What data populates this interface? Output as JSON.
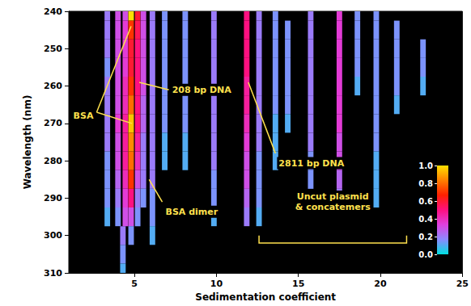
{
  "chart_data": {
    "type": "heatmap",
    "xlabel": "Sedimentation coefficient",
    "ylabel": "Wavelength (nm)",
    "xlim": [
      1,
      25
    ],
    "xticks": [
      5,
      10,
      15,
      20,
      25
    ],
    "ylim": [
      240,
      310
    ],
    "yticks": [
      240,
      250,
      260,
      270,
      280,
      290,
      300,
      310
    ],
    "grid": false,
    "wavelengths": [
      240,
      245,
      250,
      255,
      260,
      265,
      270,
      275,
      280,
      285,
      290,
      295,
      300,
      305,
      310
    ],
    "streaks": [
      {
        "s": 3.35,
        "values": [
          0.2,
          0.2,
          0.2,
          0.15,
          0.2,
          0.2,
          0.2,
          0.2,
          0.15,
          0.15,
          0.15,
          0.1,
          null,
          null,
          null
        ]
      },
      {
        "s": 4.0,
        "values": [
          0.3,
          0.3,
          0.3,
          0.3,
          0.3,
          0.3,
          0.35,
          0.3,
          0.3,
          0.25,
          0.2,
          0.15,
          null,
          null,
          null
        ]
      },
      {
        "s": 4.45,
        "values": [
          0.3,
          0.35,
          0.35,
          0.35,
          0.4,
          0.4,
          0.45,
          0.45,
          0.45,
          0.4,
          0.35,
          0.3,
          null,
          null,
          null
        ]
      },
      {
        "s": 4.3,
        "values": [
          null,
          null,
          null,
          null,
          null,
          null,
          null,
          null,
          null,
          null,
          null,
          null,
          0.2,
          0.15,
          0.1
        ]
      },
      {
        "s": 4.8,
        "values": [
          1.0,
          0.7,
          0.6,
          0.6,
          0.7,
          0.8,
          0.95,
          0.85,
          0.8,
          0.7,
          0.5,
          0.3,
          0.15,
          null,
          null
        ]
      },
      {
        "s": 5.2,
        "values": [
          0.6,
          0.55,
          0.5,
          0.5,
          0.5,
          0.5,
          0.5,
          0.45,
          0.4,
          0.3,
          0.2,
          0.15,
          null,
          null,
          null
        ]
      },
      {
        "s": 5.55,
        "values": [
          0.3,
          0.3,
          0.3,
          0.3,
          0.3,
          0.25,
          0.25,
          0.2,
          0.2,
          0.2,
          0.15,
          null,
          null,
          null,
          null
        ]
      },
      {
        "s": 6.1,
        "values": [
          0.2,
          0.2,
          0.2,
          0.2,
          0.2,
          0.2,
          0.2,
          0.2,
          0.2,
          0.2,
          0.15,
          0.15,
          0.1,
          null,
          null
        ]
      },
      {
        "s": 6.85,
        "values": [
          0.15,
          0.15,
          0.15,
          0.15,
          0.15,
          0.15,
          0.15,
          0.1,
          0.1,
          null,
          null,
          null,
          null,
          null,
          null
        ]
      },
      {
        "s": 8.1,
        "values": [
          0.15,
          0.15,
          0.15,
          0.15,
          0.15,
          0.15,
          0.15,
          0.1,
          0.1,
          null,
          null,
          null,
          null,
          null,
          null
        ]
      },
      {
        "s": 9.85,
        "values": [
          0.2,
          0.2,
          0.2,
          0.2,
          0.2,
          0.2,
          0.2,
          0.2,
          0.2,
          0.15,
          0.15,
          0.1,
          null,
          null,
          null
        ]
      },
      {
        "s": 11.85,
        "values": [
          0.5,
          0.5,
          0.5,
          0.5,
          0.45,
          0.45,
          0.4,
          0.35,
          0.3,
          0.3,
          0.25,
          0.2,
          null,
          null,
          null
        ]
      },
      {
        "s": 12.6,
        "values": [
          0.2,
          0.2,
          0.2,
          0.2,
          0.2,
          0.2,
          0.2,
          0.2,
          0.15,
          0.15,
          0.15,
          0.1,
          null,
          null,
          null
        ]
      },
      {
        "s": 13.6,
        "values": [
          0.15,
          0.15,
          0.15,
          0.15,
          0.15,
          0.15,
          0.1,
          0.1,
          0.1,
          null,
          null,
          null,
          null,
          null,
          null
        ]
      },
      {
        "s": 14.35,
        "values": [
          null,
          0.15,
          0.15,
          0.15,
          0.15,
          0.15,
          0.1,
          null,
          null,
          null,
          null,
          null,
          null,
          null,
          null
        ]
      },
      {
        "s": 15.75,
        "values": [
          0.2,
          0.2,
          0.2,
          0.2,
          0.2,
          0.2,
          0.2,
          0.2,
          0.15,
          0.15,
          null,
          null,
          null,
          null,
          null
        ]
      },
      {
        "s": 17.5,
        "values": [
          0.35,
          0.35,
          0.35,
          0.35,
          0.35,
          0.35,
          0.35,
          0.3,
          0.3,
          0.25,
          0.2,
          null,
          null,
          null,
          null
        ]
      },
      {
        "s": 18.6,
        "values": [
          0.15,
          0.15,
          0.15,
          0.15,
          0.1,
          null,
          null,
          null,
          null,
          null,
          null,
          null,
          null,
          null,
          null
        ]
      },
      {
        "s": 19.75,
        "values": [
          0.15,
          0.15,
          0.15,
          0.15,
          0.15,
          0.15,
          0.15,
          0.15,
          0.1,
          0.1,
          0.1,
          null,
          null,
          null,
          null
        ]
      },
      {
        "s": 21.0,
        "values": [
          null,
          0.15,
          0.15,
          0.15,
          0.15,
          0.1,
          null,
          null,
          null,
          null,
          null,
          null,
          null,
          null,
          null
        ]
      },
      {
        "s": 22.6,
        "values": [
          null,
          null,
          0.15,
          0.15,
          0.1,
          null,
          null,
          null,
          null,
          null,
          null,
          null,
          null,
          null,
          null
        ]
      }
    ],
    "colorbar": {
      "range": [
        0,
        1
      ],
      "ticks": [
        {
          "value": 0,
          "label": "0.0"
        },
        0.2,
        0.4,
        0.6,
        0.8,
        {
          "value": 1,
          "label": "1.0"
        }
      ]
    },
    "annotations": [
      {
        "text": "BSA",
        "points": [
          [
            4.8,
            244
          ],
          [
            4.85,
            270
          ]
        ]
      },
      {
        "text": "208 bp DNA",
        "points": [
          [
            5.3,
            259
          ]
        ]
      },
      {
        "text": "2811 bp DNA",
        "points": [
          [
            11.95,
            259
          ]
        ]
      },
      {
        "text": "BSA dimer",
        "points": [
          [
            5.9,
            285
          ]
        ]
      },
      {
        "text": "Uncut plasmid\n& concatemers",
        "span": [
          12.6,
          21.6
        ]
      }
    ]
  }
}
